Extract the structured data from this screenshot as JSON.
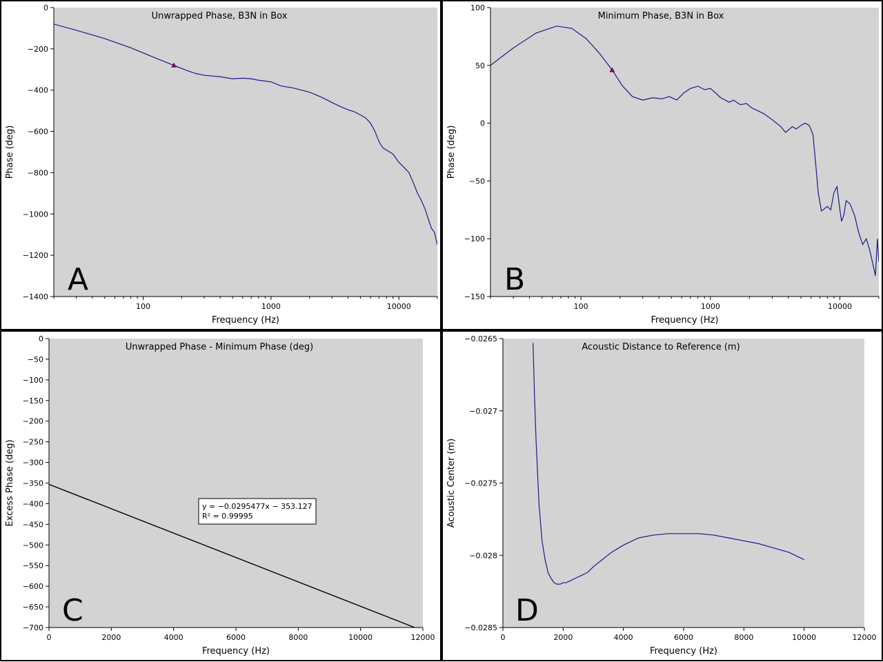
{
  "chart_data": [
    {
      "id": "A",
      "type": "line",
      "panel_letter": "A",
      "title": "Unwrapped Phase, B3N in Box",
      "xlabel": "Frequency (Hz)",
      "ylabel": "Phase (deg)",
      "xscale": "log",
      "xlim": [
        20,
        20000
      ],
      "ylim": [
        -1400,
        0
      ],
      "xticks": [
        100,
        1000,
        10000
      ],
      "xtick_labels": [
        "100",
        "1000",
        "10000"
      ],
      "yticks": [
        0,
        -200,
        -400,
        -600,
        -800,
        -1000,
        -1200,
        -1400
      ],
      "ytick_labels": [
        "0",
        "−200",
        "−400",
        "−600",
        "−800",
        "−1000",
        "−1200",
        "−1400"
      ],
      "grid": false,
      "line_color": "#1a1a8c",
      "marker_color": "#6a0d5a",
      "marker": {
        "x": 174,
        "y": -280
      },
      "series": [
        {
          "x": [
            20,
            30,
            50,
            80,
            120,
            174,
            220,
            260,
            300,
            400,
            500,
            600,
            700,
            800,
            1000,
            1200,
            1500,
            2000,
            2500,
            3000,
            3500,
            4000,
            4500,
            5000,
            5500,
            6000,
            6500,
            7000,
            7500,
            8000,
            9000,
            10000,
            11000,
            12000,
            13000,
            14000,
            15000,
            16000,
            17000,
            18000,
            19000,
            20000
          ],
          "y": [
            -80,
            -110,
            -150,
            -195,
            -240,
            -280,
            -305,
            -320,
            -328,
            -335,
            -345,
            -342,
            -345,
            -352,
            -360,
            -380,
            -390,
            -410,
            -435,
            -460,
            -480,
            -495,
            -505,
            -520,
            -535,
            -560,
            -600,
            -650,
            -680,
            -690,
            -710,
            -750,
            -775,
            -800,
            -850,
            -900,
            -935,
            -975,
            -1025,
            -1070,
            -1090,
            -1150
          ]
        }
      ]
    },
    {
      "id": "B",
      "type": "line",
      "panel_letter": "B",
      "title": "Minimum Phase, B3N in Box",
      "xlabel": "Frequency (Hz)",
      "ylabel": "Phase (deg)",
      "xscale": "log",
      "xlim": [
        20,
        20000
      ],
      "ylim": [
        -150,
        100
      ],
      "xticks": [
        100,
        1000,
        10000
      ],
      "xtick_labels": [
        "100",
        "1000",
        "10000"
      ],
      "yticks": [
        100,
        50,
        0,
        -50,
        -100,
        -150
      ],
      "ytick_labels": [
        "100",
        "50",
        "0",
        "−50",
        "−100",
        "−150"
      ],
      "grid": false,
      "line_color": "#1a1a8c",
      "marker_color": "#6a0d5a",
      "marker": {
        "x": 174,
        "y": 46
      },
      "series": [
        {
          "x": [
            20,
            30,
            45,
            65,
            85,
            110,
            140,
            174,
            210,
            250,
            300,
            360,
            420,
            480,
            550,
            620,
            700,
            800,
            900,
            1000,
            1100,
            1200,
            1300,
            1400,
            1500,
            1700,
            1900,
            2100,
            2300,
            2600,
            3000,
            3500,
            3800,
            4300,
            4600,
            5000,
            5400,
            5800,
            6200,
            6500,
            6800,
            7200,
            7600,
            8000,
            8500,
            9000,
            9500,
            10000,
            10300,
            10700,
            11200,
            12000,
            13000,
            14000,
            15000,
            16000,
            17000,
            18000,
            18800,
            19500,
            20000
          ],
          "y": [
            50,
            65,
            78,
            84,
            82,
            73,
            60,
            46,
            32,
            23,
            20,
            22,
            21,
            23,
            20,
            26,
            30,
            32,
            29,
            30,
            26,
            22,
            20,
            18,
            20,
            16,
            17,
            13,
            11,
            8,
            3,
            -3,
            -8,
            -3,
            -5,
            -2,
            0,
            -2,
            -10,
            -35,
            -60,
            -76,
            -74,
            -72,
            -75,
            -60,
            -55,
            -75,
            -85,
            -80,
            -67,
            -70,
            -80,
            -95,
            -105,
            -100,
            -110,
            -122,
            -132,
            -100,
            -120
          ]
        }
      ]
    },
    {
      "id": "C",
      "type": "line",
      "panel_letter": "C",
      "title": "Unwrapped Phase - Minimum Phase (deg)",
      "xlabel": "Frequency (Hz)",
      "ylabel": "Excess Phase (deg)",
      "xscale": "linear",
      "xlim": [
        0,
        12000
      ],
      "ylim": [
        -700,
        0
      ],
      "xticks": [
        0,
        2000,
        4000,
        6000,
        8000,
        10000,
        12000
      ],
      "xtick_labels": [
        "0",
        "2000",
        "4000",
        "6000",
        "8000",
        "10000",
        "12000"
      ],
      "yticks": [
        0,
        -50,
        -100,
        -150,
        -200,
        -250,
        -300,
        -350,
        -400,
        -450,
        -500,
        -550,
        -600,
        -650,
        -700
      ],
      "ytick_labels": [
        "0",
        "−50",
        "−100",
        "−150",
        "−200",
        "−250",
        "−300",
        "−350",
        "−400",
        "−450",
        "−500",
        "−550",
        "−600",
        "−650",
        "−700"
      ],
      "grid": false,
      "line_color": "#000000",
      "fit": {
        "slope": -0.0295477,
        "intercept": -353.127
      },
      "equation_line1": "y = −0.0295477x − 353.127",
      "equation_line2": "R² = 0.99995",
      "series": [
        {
          "x": [
            0,
            11740
          ],
          "y": [
            -353.127,
            -700
          ]
        }
      ]
    },
    {
      "id": "D",
      "type": "line",
      "panel_letter": "D",
      "title": "Acoustic Distance to Reference (m)",
      "xlabel": "Frequency (Hz)",
      "ylabel": "Acoustic Center (m)",
      "xscale": "linear",
      "xlim": [
        0,
        12000
      ],
      "ylim": [
        -0.0285,
        -0.0265
      ],
      "xticks": [
        0,
        2000,
        4000,
        6000,
        8000,
        10000,
        12000
      ],
      "xtick_labels": [
        "0",
        "2000",
        "4000",
        "6000",
        "8000",
        "10000",
        "12000"
      ],
      "yticks": [
        -0.0265,
        -0.027,
        -0.0275,
        -0.028,
        -0.0285
      ],
      "ytick_labels": [
        "−0.0265",
        "−0.027",
        "−0.0275",
        "−0.028",
        "−0.0285"
      ],
      "grid": false,
      "line_color": "#1a1a8c",
      "series": [
        {
          "x": [
            1000,
            1050,
            1100,
            1200,
            1300,
            1400,
            1500,
            1600,
            1700,
            1800,
            1900,
            2000,
            2100,
            2200,
            2400,
            2600,
            2800,
            3000,
            3300,
            3600,
            4000,
            4500,
            5000,
            5500,
            6000,
            6500,
            7000,
            7500,
            8000,
            8500,
            9000,
            9500,
            10000
          ],
          "y": [
            -0.02653,
            -0.0269,
            -0.0272,
            -0.02765,
            -0.0279,
            -0.02803,
            -0.02812,
            -0.02816,
            -0.02819,
            -0.0282,
            -0.0282,
            -0.02819,
            -0.02819,
            -0.02818,
            -0.02816,
            -0.02814,
            -0.02812,
            -0.02808,
            -0.02803,
            -0.02798,
            -0.02793,
            -0.02788,
            -0.02786,
            -0.02785,
            -0.02785,
            -0.02785,
            -0.02786,
            -0.02788,
            -0.0279,
            -0.02792,
            -0.02795,
            -0.02798,
            -0.02803
          ]
        }
      ]
    }
  ]
}
